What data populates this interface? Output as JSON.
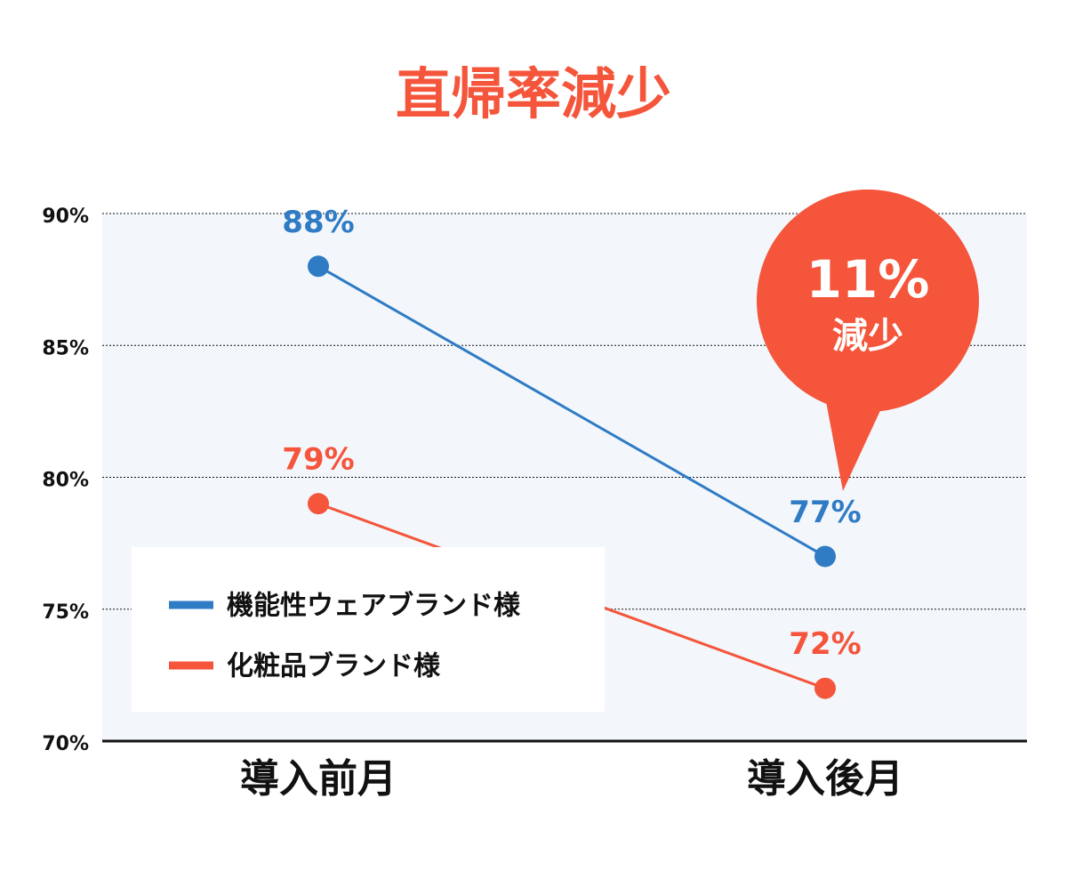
{
  "chart_data": {
    "type": "line",
    "title": "直帰率減少",
    "categories": [
      "導入前月",
      "導入後月"
    ],
    "series": [
      {
        "name": "機能性ウェアブランド様",
        "color": "#2f7bc4",
        "values": [
          88,
          77
        ],
        "value_labels": [
          "88%",
          "77%"
        ]
      },
      {
        "name": "化粧品ブランド様",
        "color": "#f4553b",
        "values": [
          79,
          72
        ],
        "value_labels": [
          "79%",
          "72%"
        ]
      }
    ],
    "ylim": [
      70,
      90
    ],
    "yticks": [
      {
        "value": 70,
        "label": "70%"
      },
      {
        "value": 75,
        "label": "75%"
      },
      {
        "value": 80,
        "label": "80%"
      },
      {
        "value": 85,
        "label": "85%"
      },
      {
        "value": 90,
        "label": "90%"
      }
    ],
    "grid": true,
    "legend": "lower left",
    "annotation": {
      "label": "11%",
      "text": "減少",
      "color": "#f4553b"
    }
  }
}
